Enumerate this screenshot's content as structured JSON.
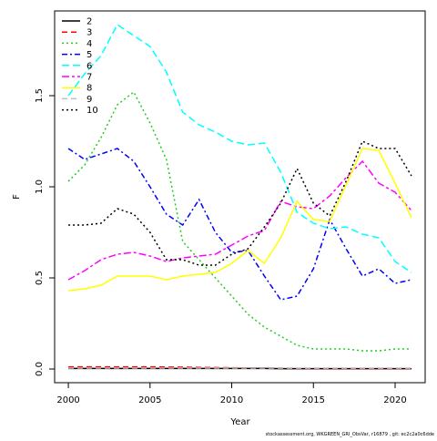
{
  "chart_data": {
    "type": "line",
    "xlabel": "Year",
    "ylabel": "F",
    "footer": "stockassessment.org, WKGREEN_GRI_ObsVar, r16879 , git: ec2c2a0c6dde",
    "x": [
      2000,
      2001,
      2002,
      2003,
      2004,
      2005,
      2006,
      2007,
      2008,
      2009,
      2010,
      2011,
      2012,
      2013,
      2014,
      2015,
      2016,
      2017,
      2018,
      2019,
      2020,
      2021
    ],
    "xlim": [
      1999.16,
      2021.84
    ],
    "xticks": [
      2000,
      2005,
      2010,
      2015,
      2020
    ],
    "ylim": [
      -0.075,
      1.965
    ],
    "yticks": [
      {
        "value": 0,
        "label": "0.0"
      },
      0.5,
      {
        "value": 1,
        "label": "1.0"
      },
      1.5
    ],
    "legend": "top-left",
    "series": [
      {
        "name": "2",
        "color": "#000000",
        "dash": "none",
        "values": [
          0.003,
          0.003,
          0.003,
          0.003,
          0.003,
          0.003,
          0.003,
          0.003,
          0.003,
          0.003,
          0.003,
          0.003,
          0.003,
          0.002,
          0.002,
          0.002,
          0.002,
          0.002,
          0.002,
          0.002,
          0.002,
          0.002
        ]
      },
      {
        "name": "3",
        "color": "#ff0000",
        "dash": "6,4",
        "values": [
          0.012,
          0.012,
          0.012,
          0.012,
          0.012,
          0.012,
          0.011,
          0.01,
          0.009,
          0.008,
          0.007,
          0.006,
          0.006,
          0.005,
          0.004,
          0.004,
          0.003,
          0.003,
          0.003,
          0.003,
          0.003,
          0.003
        ]
      },
      {
        "name": "4",
        "color": "#22cc22",
        "dash": "2,3",
        "values": [
          1.03,
          1.12,
          1.27,
          1.45,
          1.52,
          1.35,
          1.15,
          0.7,
          0.6,
          0.5,
          0.4,
          0.3,
          0.23,
          0.18,
          0.13,
          0.11,
          0.11,
          0.11,
          0.1,
          0.1,
          0.11,
          0.11
        ]
      },
      {
        "name": "5",
        "color": "#0000ff",
        "dash": "6,3,2,3",
        "values": [
          1.21,
          1.15,
          1.18,
          1.21,
          1.14,
          1.0,
          0.85,
          0.79,
          0.93,
          0.75,
          0.64,
          0.65,
          0.51,
          0.38,
          0.4,
          0.55,
          0.82,
          0.66,
          0.51,
          0.55,
          0.47,
          0.49
        ]
      },
      {
        "name": "6",
        "color": "#00ffff",
        "dash": "8,4",
        "values": [
          1.5,
          1.62,
          1.72,
          1.89,
          1.83,
          1.77,
          1.63,
          1.41,
          1.34,
          1.3,
          1.25,
          1.23,
          1.24,
          1.08,
          0.86,
          0.8,
          0.77,
          0.78,
          0.74,
          0.72,
          0.59,
          0.53
        ]
      },
      {
        "name": "7",
        "color": "#ff00ff",
        "dash": "8,3,3,3",
        "values": [
          0.49,
          0.54,
          0.6,
          0.63,
          0.64,
          0.62,
          0.59,
          0.61,
          0.62,
          0.63,
          0.68,
          0.73,
          0.76,
          0.92,
          0.89,
          0.88,
          0.95,
          1.05,
          1.14,
          1.02,
          0.97,
          0.87
        ]
      },
      {
        "name": "8",
        "color": "#ffff00",
        "dash": "none",
        "values": [
          0.43,
          0.44,
          0.46,
          0.51,
          0.51,
          0.51,
          0.49,
          0.51,
          0.52,
          0.53,
          0.58,
          0.65,
          0.58,
          0.72,
          0.92,
          0.82,
          0.81,
          1.01,
          1.21,
          1.2,
          1.02,
          0.83
        ]
      },
      {
        "name": "9",
        "color": "#bebebe",
        "dash": "6,4",
        "values": [
          0.005,
          0.005,
          0.005,
          0.005,
          0.005,
          0.005,
          0.005,
          0.005,
          0.005,
          0.005,
          0.005,
          0.005,
          0.005,
          0.005,
          0.005,
          0.005,
          0.005,
          0.005,
          0.005,
          0.005,
          0.005,
          0.005
        ]
      },
      {
        "name": "10",
        "color": "#000000",
        "dash": "2,3",
        "values": [
          0.79,
          0.79,
          0.8,
          0.88,
          0.85,
          0.75,
          0.6,
          0.6,
          0.57,
          0.57,
          0.63,
          0.66,
          0.78,
          0.91,
          1.1,
          0.91,
          0.84,
          1.03,
          1.25,
          1.21,
          1.21,
          1.06
        ]
      }
    ]
  }
}
